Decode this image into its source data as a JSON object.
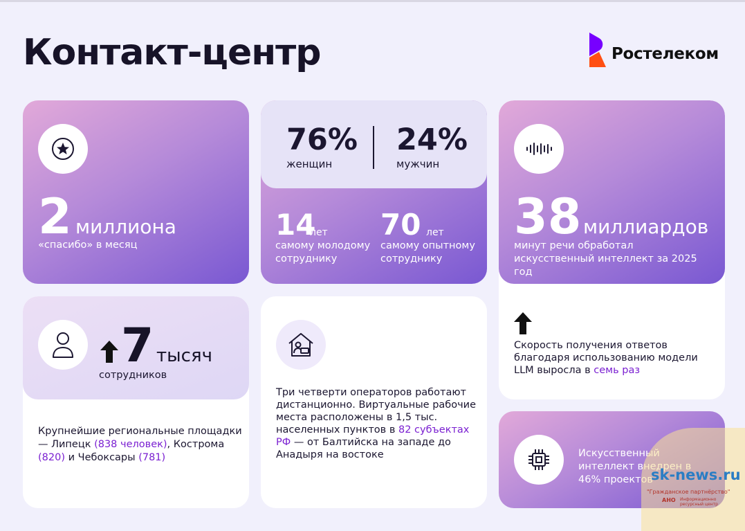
{
  "header": {
    "title": "Контакт-центр",
    "logo_text": "Ростелеком",
    "colors": {
      "logo_purple": "#7700ff",
      "logo_orange": "#ff4f12"
    }
  },
  "colors": {
    "accent_text": "#7a1fd1",
    "gradient_start": "#e2a9d9",
    "gradient_end": "#7958d2",
    "page_background": "#f1f0fc"
  },
  "card_thanks": {
    "icon": "star-icon",
    "number": "2",
    "unit": "миллиона",
    "subtitle": "«спасибо» в месяц"
  },
  "card_demographics": {
    "women_percent": "76%",
    "women_label": "женщин",
    "men_percent": "24%",
    "men_label": "мужчин",
    "youngest_age": "14",
    "youngest_unit": "лет",
    "youngest_label": "самому молодому сотруднику",
    "oldest_age": "70",
    "oldest_unit": "лет",
    "oldest_label": "самому опытному сотруднику"
  },
  "card_speech": {
    "icon": "soundwave-icon",
    "number": "38",
    "unit": "миллиардов",
    "subtitle": "минут речи обработал искусственный интеллект за 2025 год",
    "arrow_icon": "arrow-up-icon",
    "desc_prefix": "Скорость получения ответов благодаря использованию модели LLM выросла в ",
    "desc_highlight": "семь раз"
  },
  "card_staff": {
    "icon": "person-icon",
    "arrow_icon": "arrow-up-icon",
    "number": "7",
    "unit": "тысяч",
    "subtitle": "сотрудников",
    "desc_part1": "Крупнейшие региональные площадки — Липецк ",
    "desc_hl1": "(838 человек)",
    "desc_part2": ", Кострома ",
    "desc_hl2": "(820)",
    "desc_part3": " и Чебоксары ",
    "desc_hl3": "(781)"
  },
  "card_remote": {
    "icon": "home-office-icon",
    "desc_part1": "Три четверти операторов работают дистанционно. Виртуальные рабочие места расположены в 1,5 тыс. населенных пунктов в ",
    "desc_highlight": "82 субъектах РФ",
    "desc_part2": " — от Балтийска на западе до Анадыря на востоке"
  },
  "card_ai": {
    "icon": "chip-icon",
    "desc": "Искусственный интеллект внедрен в 46% проектов"
  },
  "watermark": {
    "site": "sk-news.ru",
    "line1": "\"Гражданское партнёрство\"",
    "line2": "АНО",
    "line3": "Информационно ресурсный центр"
  }
}
